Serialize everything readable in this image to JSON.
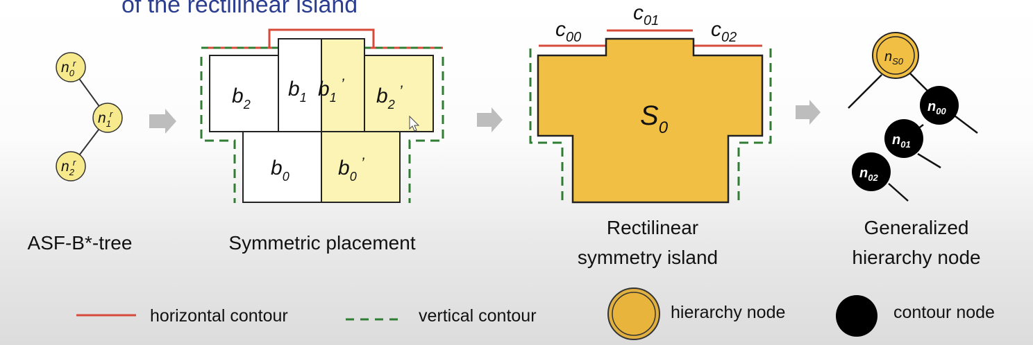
{
  "header_fragment": "of the rectilinear island",
  "panels": {
    "tree": {
      "caption": "ASF-B*-tree",
      "nodes": [
        {
          "base": "n",
          "sub": "0",
          "sup": "r"
        },
        {
          "base": "n",
          "sub": "1",
          "sup": "r"
        },
        {
          "base": "n",
          "sub": "2",
          "sup": "r"
        }
      ]
    },
    "placement": {
      "caption": "Symmetric placement",
      "blocks": [
        {
          "base": "b",
          "sub": "2",
          "prime": ""
        },
        {
          "base": "b",
          "sub": "1",
          "prime": ""
        },
        {
          "base": "b",
          "sub": "1",
          "prime": "’"
        },
        {
          "base": "b",
          "sub": "2",
          "prime": "’"
        },
        {
          "base": "b",
          "sub": "0",
          "prime": ""
        },
        {
          "base": "b",
          "sub": "0",
          "prime": "’"
        }
      ]
    },
    "island": {
      "caption_line1": "Rectilinear",
      "caption_line2": "symmetry island",
      "label": {
        "base": "S",
        "sub": "0"
      },
      "contours": [
        {
          "base": "c",
          "sub": "00"
        },
        {
          "base": "c",
          "sub": "01"
        },
        {
          "base": "c",
          "sub": "02"
        }
      ]
    },
    "hierarchy": {
      "caption_line1": "Generalized",
      "caption_line2": "hierarchy node",
      "root": {
        "base": "n",
        "sub": "S0"
      },
      "nodes": [
        {
          "base": "n",
          "sub": "00"
        },
        {
          "base": "n",
          "sub": "01"
        },
        {
          "base": "n",
          "sub": "02"
        }
      ]
    }
  },
  "legend": {
    "horizontal": "horizontal contour",
    "vertical": "vertical contour",
    "hierarchy": "hierarchy node",
    "contour": "contour node"
  },
  "colors": {
    "horizontal_contour": "#d64a3a",
    "vertical_contour": "#2f7d32",
    "hierarchy_fill": "#f2bf45",
    "tree_node_fill": "#f7ea8c",
    "mirrored_block_fill": "#fbf4b4",
    "contour_node_fill": "#000000",
    "arrow": "#bdbdbd"
  }
}
